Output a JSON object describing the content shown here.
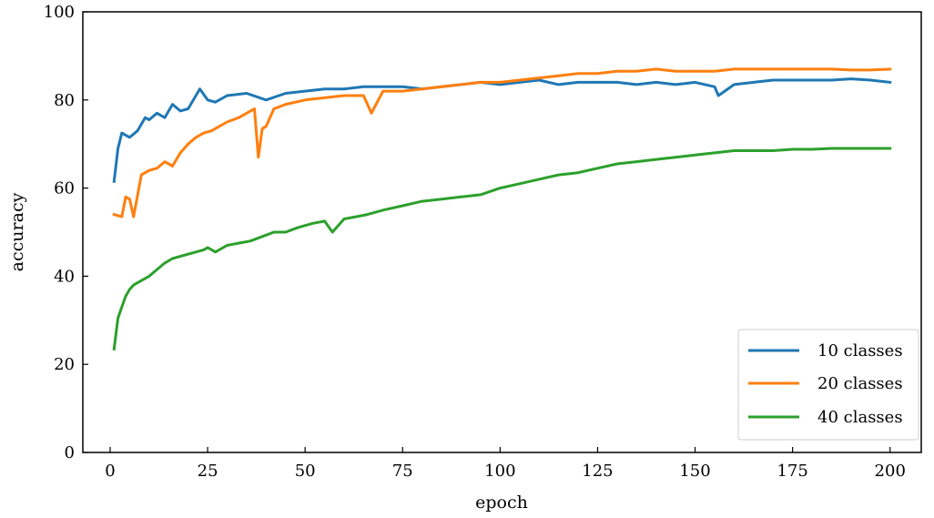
{
  "chart_data": {
    "type": "line",
    "xlabel": "epoch",
    "ylabel": "accuracy",
    "xlim": [
      -7,
      208
    ],
    "ylim": [
      0,
      100
    ],
    "xticks": [
      0,
      25,
      50,
      75,
      100,
      125,
      150,
      175,
      200
    ],
    "yticks": [
      0,
      20,
      40,
      60,
      80,
      100
    ],
    "grid": false,
    "legend_position": "bottom-right",
    "series": [
      {
        "name": "10 classes",
        "color": "#1f77b4",
        "x": [
          1,
          2,
          3,
          5,
          7,
          9,
          10,
          12,
          14,
          16,
          18,
          20,
          22,
          23,
          25,
          27,
          30,
          35,
          40,
          45,
          50,
          55,
          60,
          65,
          70,
          75,
          80,
          85,
          90,
          95,
          100,
          105,
          110,
          115,
          120,
          125,
          130,
          135,
          140,
          145,
          150,
          155,
          156,
          160,
          165,
          170,
          175,
          180,
          185,
          190,
          195,
          200
        ],
        "values": [
          61.5,
          69,
          72.5,
          71.5,
          73,
          76,
          75.5,
          77,
          76,
          79,
          77.5,
          78,
          81,
          82.5,
          80,
          79.5,
          81,
          81.5,
          80,
          81.5,
          82,
          82.5,
          82.5,
          83,
          83,
          83,
          82.5,
          83,
          83.5,
          84,
          83.5,
          84,
          84.5,
          83.5,
          84,
          84,
          84,
          83.5,
          84,
          83.5,
          84,
          83,
          81,
          83.5,
          84,
          84.5,
          84.5,
          84.5,
          84.5,
          84.8,
          84.5,
          84
        ]
      },
      {
        "name": "20 classes",
        "color": "#ff7f0e",
        "x": [
          1,
          3,
          4,
          5,
          6,
          8,
          10,
          12,
          14,
          16,
          18,
          20,
          22,
          24,
          26,
          28,
          30,
          33,
          36,
          37,
          38,
          39,
          40,
          42,
          45,
          50,
          55,
          60,
          65,
          67,
          70,
          75,
          80,
          85,
          90,
          95,
          100,
          105,
          110,
          115,
          120,
          125,
          130,
          135,
          140,
          145,
          150,
          155,
          160,
          165,
          170,
          175,
          180,
          185,
          190,
          195,
          200
        ],
        "values": [
          54,
          53.5,
          58,
          57.5,
          53.5,
          63,
          64,
          64.5,
          66,
          65,
          68,
          70,
          71.5,
          72.5,
          73,
          74,
          75,
          76,
          77.5,
          78,
          67,
          73.5,
          74,
          78,
          79,
          80,
          80.5,
          81,
          81,
          77,
          82,
          82,
          82.5,
          83,
          83.5,
          84,
          84,
          84.5,
          85,
          85.5,
          86,
          86,
          86.5,
          86.5,
          87,
          86.5,
          86.5,
          86.5,
          87,
          87,
          87,
          87,
          87,
          87,
          86.8,
          86.8,
          87
        ]
      },
      {
        "name": "40 classes",
        "color": "#2ca02c",
        "x": [
          1,
          2,
          3,
          4,
          5,
          6,
          8,
          10,
          12,
          14,
          16,
          18,
          20,
          22,
          24,
          25,
          27,
          30,
          33,
          36,
          39,
          42,
          45,
          48,
          50,
          52,
          55,
          57,
          60,
          63,
          66,
          70,
          75,
          80,
          85,
          90,
          95,
          100,
          105,
          110,
          115,
          120,
          125,
          130,
          135,
          140,
          145,
          150,
          155,
          160,
          165,
          170,
          175,
          180,
          185,
          190,
          195,
          200
        ],
        "values": [
          23.5,
          30.5,
          33,
          35.5,
          37,
          38,
          39,
          40,
          41.5,
          43,
          44,
          44.5,
          45,
          45.5,
          46,
          46.5,
          45.5,
          47,
          47.5,
          48,
          49,
          50,
          50,
          51,
          51.5,
          52,
          52.5,
          50,
          53,
          53.5,
          54,
          55,
          56,
          57,
          57.5,
          58,
          58.5,
          60,
          61,
          62,
          63,
          63.5,
          64.5,
          65.5,
          66,
          66.5,
          67,
          67.5,
          68,
          68.5,
          68.5,
          68.5,
          68.8,
          68.8,
          69,
          69,
          69,
          69
        ]
      }
    ]
  }
}
